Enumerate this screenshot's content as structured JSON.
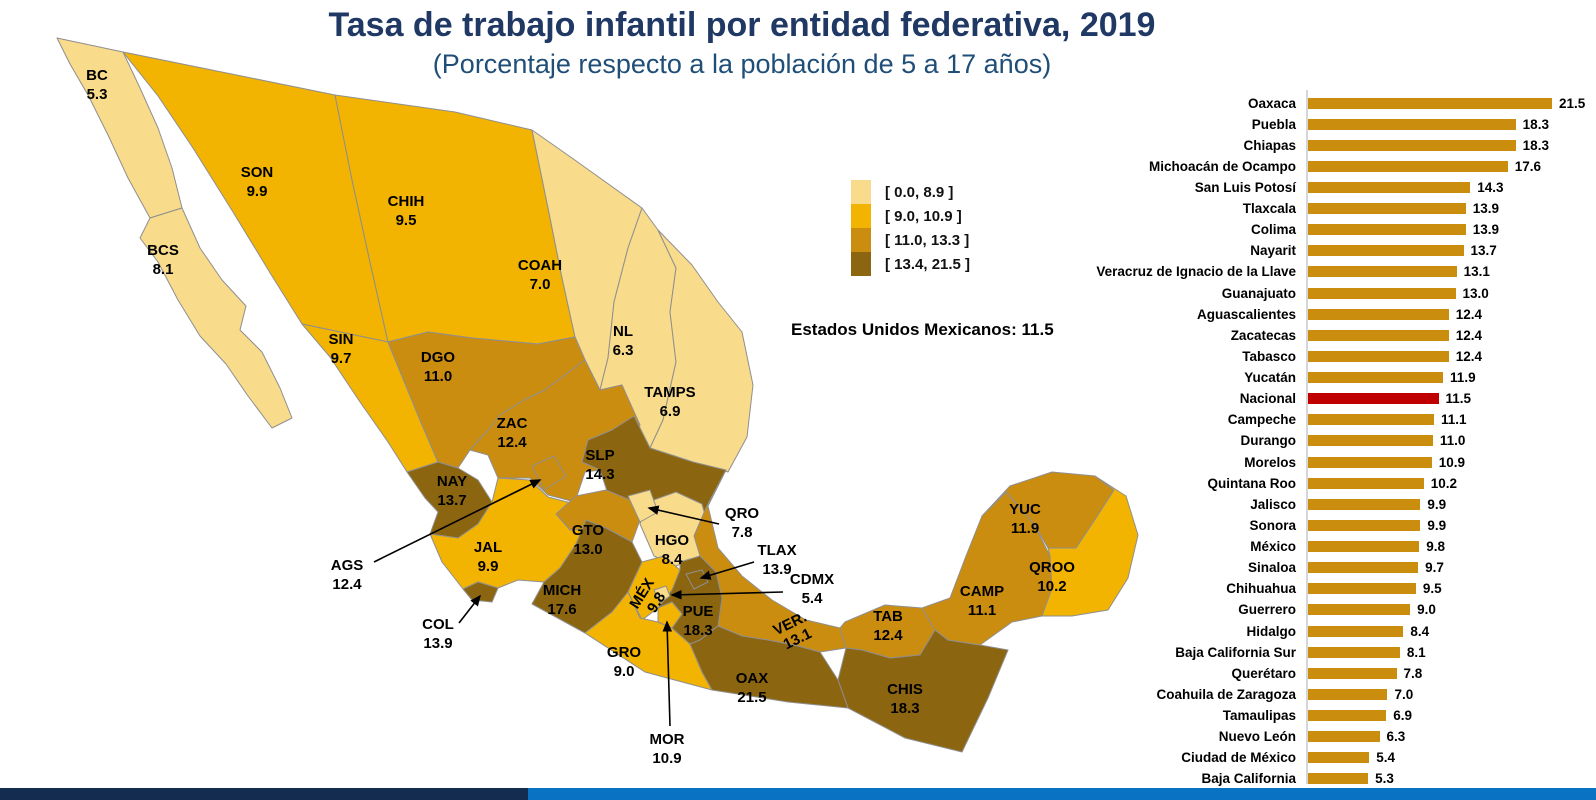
{
  "title": "Tasa de trabajo infantil por entidad federativa, 2019",
  "subtitle": "(Porcentaje respecto a la población de 5 a 17 años)",
  "national_note": "Estados Unidos Mexicanos: 11.5",
  "legend": {
    "items": [
      {
        "label": "[ 0.0, 8.9 ]",
        "color": "#F8DB8B"
      },
      {
        "label": "[ 9.0, 10.9 ]",
        "color": "#F2B301"
      },
      {
        "label": "[ 11.0, 13.3 ]",
        "color": "#CB8D10"
      },
      {
        "label": "[ 13.4, 21.5 ]",
        "color": "#8B6510"
      }
    ]
  },
  "map": {
    "states": [
      {
        "id": "BC",
        "label": "BC",
        "value": "5.3",
        "cat": 0
      },
      {
        "id": "BCS",
        "label": "BCS",
        "value": "8.1",
        "cat": 0
      },
      {
        "id": "SON",
        "label": "SON",
        "value": "9.9",
        "cat": 1
      },
      {
        "id": "CHIH",
        "label": "CHIH",
        "value": "9.5",
        "cat": 1
      },
      {
        "id": "COAH",
        "label": "COAH",
        "value": "7.0",
        "cat": 0
      },
      {
        "id": "NL",
        "label": "NL",
        "value": "6.3",
        "cat": 0
      },
      {
        "id": "TAMPS",
        "label": "TAMPS",
        "value": "6.9",
        "cat": 0
      },
      {
        "id": "SIN",
        "label": "SIN",
        "value": "9.7",
        "cat": 1
      },
      {
        "id": "DGO",
        "label": "DGO",
        "value": "11.0",
        "cat": 2
      },
      {
        "id": "ZAC",
        "label": "ZAC",
        "value": "12.4",
        "cat": 2
      },
      {
        "id": "SLP",
        "label": "SLP",
        "value": "14.3",
        "cat": 3
      },
      {
        "id": "AGS",
        "label": "AGS",
        "value": "12.4",
        "cat": 2
      },
      {
        "id": "NAY",
        "label": "NAY",
        "value": "13.7",
        "cat": 3
      },
      {
        "id": "JAL",
        "label": "JAL",
        "value": "9.9",
        "cat": 1
      },
      {
        "id": "COL",
        "label": "COL",
        "value": "13.9",
        "cat": 3
      },
      {
        "id": "GTO",
        "label": "GTO",
        "value": "13.0",
        "cat": 2
      },
      {
        "id": "HGO",
        "label": "HGO",
        "value": "8.4",
        "cat": 0
      },
      {
        "id": "QRO",
        "label": "QRO",
        "value": "7.8",
        "cat": 0
      },
      {
        "id": "MICH",
        "label": "MICH",
        "value": "17.6",
        "cat": 3
      },
      {
        "id": "MEX",
        "label": "MÉX",
        "value": "9.8",
        "cat": 1
      },
      {
        "id": "GRO",
        "label": "GRO",
        "value": "9.0",
        "cat": 1
      },
      {
        "id": "VER",
        "label": "VER.",
        "value": "13.1",
        "cat": 2
      },
      {
        "id": "PUE",
        "label": "PUE",
        "value": "18.3",
        "cat": 3
      },
      {
        "id": "TLAX",
        "label": "TLAX",
        "value": "13.9",
        "cat": 3
      },
      {
        "id": "CDMX",
        "label": "CDMX",
        "value": "5.4",
        "cat": 0
      },
      {
        "id": "MOR",
        "label": "MOR",
        "value": "10.9",
        "cat": 1
      },
      {
        "id": "TAB",
        "label": "TAB",
        "value": "12.4",
        "cat": 2
      },
      {
        "id": "CHIS",
        "label": "CHIS",
        "value": "18.3",
        "cat": 3
      },
      {
        "id": "CAMP",
        "label": "CAMP",
        "value": "11.1",
        "cat": 2
      },
      {
        "id": "YUC",
        "label": "YUC",
        "value": "11.9",
        "cat": 2
      },
      {
        "id": "QROO",
        "label": "QROO",
        "value": "10.2",
        "cat": 1
      },
      {
        "id": "OAX",
        "label": "OAX",
        "value": "21.5",
        "cat": 3
      }
    ]
  },
  "chart_data": {
    "type": "bar",
    "orientation": "horizontal",
    "title": "Tasa de trabajo infantil por entidad federativa, 2019",
    "xlabel": "",
    "ylabel": "",
    "xlim": [
      0,
      21.5
    ],
    "grid": false,
    "value_labels": true,
    "bar_color": "#CB8D0E",
    "highlight": {
      "category": "Nacional",
      "color": "#C00000"
    },
    "categories": [
      "Oaxaca",
      "Puebla",
      "Chiapas",
      "Michoacán de Ocampo",
      "San Luis Potosí",
      "Tlaxcala",
      "Colima",
      "Nayarit",
      "Veracruz de Ignacio de la Llave",
      "Guanajuato",
      "Aguascalientes",
      "Zacatecas",
      "Tabasco",
      "Yucatán",
      "Nacional",
      "Campeche",
      "Durango",
      "Morelos",
      "Quintana Roo",
      "Jalisco",
      "Sonora",
      "México",
      "Sinaloa",
      "Chihuahua",
      "Guerrero",
      "Hidalgo",
      "Baja California Sur",
      "Querétaro",
      "Coahuila de Zaragoza",
      "Tamaulipas",
      "Nuevo León",
      "Ciudad de México",
      "Baja California"
    ],
    "values": [
      21.5,
      18.3,
      18.3,
      17.6,
      14.3,
      13.9,
      13.9,
      13.7,
      13.1,
      13.0,
      12.4,
      12.4,
      12.4,
      11.9,
      11.5,
      11.1,
      11.0,
      10.9,
      10.2,
      9.9,
      9.9,
      9.8,
      9.7,
      9.5,
      9.0,
      8.4,
      8.1,
      7.8,
      7.0,
      6.9,
      6.3,
      5.4,
      5.3
    ]
  },
  "footer": {
    "left_color": "#132C50",
    "right_color": "#0A72C2"
  }
}
